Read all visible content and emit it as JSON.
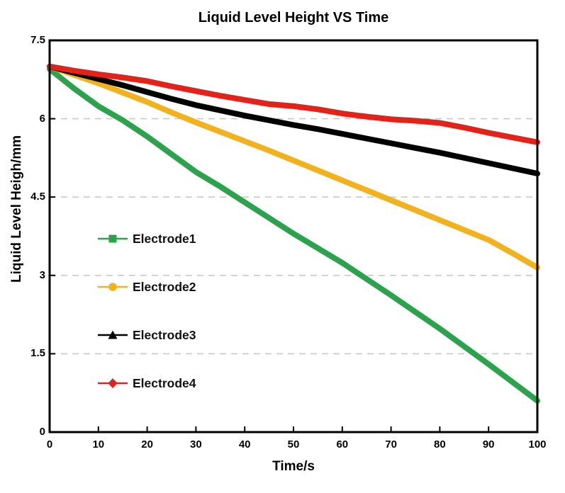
{
  "chart_data": {
    "type": "line",
    "title": "Liquid Level Height VS Time",
    "xlabel": "Time/s",
    "ylabel": "Liquid Level Heigh/mm",
    "xlim": [
      0,
      100
    ],
    "ylim": [
      0,
      7.5
    ],
    "x_ticks": [
      0,
      10,
      20,
      30,
      40,
      50,
      60,
      70,
      80,
      90,
      100
    ],
    "x_tick_labels": [
      "0",
      "10",
      "20",
      "30",
      "40",
      "50",
      "60",
      "70",
      "80",
      "90",
      "100"
    ],
    "y_ticks": [
      0,
      1.5,
      3,
      4.5,
      6,
      7.5
    ],
    "y_tick_labels": [
      "0",
      "1.5",
      "3",
      "4.5",
      "6",
      "7.5"
    ],
    "grid": "horizontal-dashed",
    "grid_color": "#c9c9c9",
    "frame": true,
    "legend_position": "inside-left-middle",
    "x": [
      0,
      5,
      10,
      15,
      20,
      25,
      30,
      35,
      40,
      45,
      50,
      55,
      60,
      65,
      70,
      75,
      80,
      85,
      90,
      95,
      100
    ],
    "series": [
      {
        "name": "Electrode1",
        "color": "#2aa34c",
        "marker": "square",
        "values": [
          6.95,
          6.58,
          6.24,
          5.97,
          5.66,
          5.32,
          4.98,
          4.7,
          4.4,
          4.1,
          3.8,
          3.52,
          3.24,
          2.93,
          2.62,
          2.3,
          1.98,
          1.64,
          1.3,
          0.95,
          0.6
        ]
      },
      {
        "name": "Electrode2",
        "color": "#f2b21d",
        "marker": "circle",
        "values": [
          7.0,
          6.84,
          6.68,
          6.5,
          6.32,
          6.12,
          5.93,
          5.75,
          5.57,
          5.39,
          5.2,
          5.01,
          4.82,
          4.63,
          4.44,
          4.25,
          4.06,
          3.87,
          3.68,
          3.42,
          3.15
        ]
      },
      {
        "name": "Electrode3",
        "color": "#000000",
        "marker": "triangle",
        "values": [
          7.0,
          6.88,
          6.76,
          6.64,
          6.51,
          6.38,
          6.26,
          6.16,
          6.06,
          5.97,
          5.88,
          5.8,
          5.71,
          5.62,
          5.53,
          5.44,
          5.35,
          5.25,
          5.15,
          5.05,
          4.95
        ]
      },
      {
        "name": "Electrode4",
        "color": "#e2231a",
        "marker": "diamond",
        "values": [
          7.0,
          6.92,
          6.85,
          6.79,
          6.72,
          6.62,
          6.53,
          6.44,
          6.36,
          6.28,
          6.24,
          6.18,
          6.1,
          6.04,
          5.99,
          5.96,
          5.92,
          5.83,
          5.73,
          5.64,
          5.55
        ]
      }
    ]
  }
}
